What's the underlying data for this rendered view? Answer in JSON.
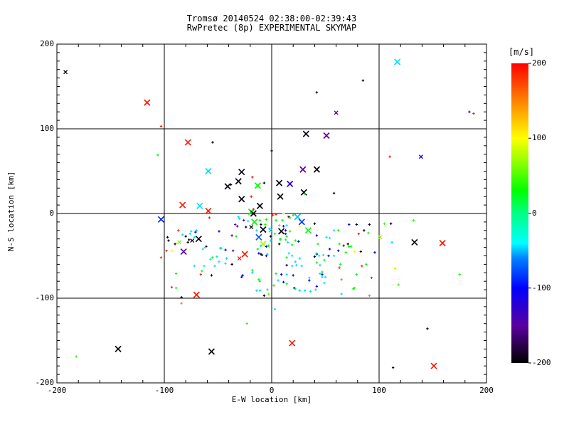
{
  "chart_data": {
    "type": "scatter",
    "title": "Tromsø 20140524 02:38:00-02:39:43",
    "subtitle": "RwPretec (8p) EXPERIMENTAL SKYMAP",
    "xlabel": "E-W location [km]",
    "ylabel": "N-S location [km]",
    "xlim": [
      -200,
      200
    ],
    "ylim": [
      -200,
      200
    ],
    "xticks": [
      -200,
      -100,
      0,
      100,
      200
    ],
    "yticks": [
      -200,
      -100,
      0,
      100,
      200
    ],
    "x_minor_step": 20,
    "y_minor_step": 10,
    "grid": true,
    "grid_lines_x": [
      -100,
      0,
      100
    ],
    "grid_lines_y": [
      -100,
      0,
      100
    ],
    "axis_color": "#000000",
    "background": "#ffffff",
    "colorbar": {
      "label": "[m/s]",
      "ticks": [
        200,
        100,
        0,
        -100,
        -200
      ],
      "range": [
        -200,
        200
      ],
      "stops": [
        [
          -200,
          "#000000"
        ],
        [
          -150,
          "#5a00a0"
        ],
        [
          -100,
          "#0000ff"
        ],
        [
          -60,
          "#0082ff"
        ],
        [
          -40,
          "#00ffff"
        ],
        [
          0,
          "#00ff82"
        ],
        [
          30,
          "#00ff00"
        ],
        [
          70,
          "#96ff00"
        ],
        [
          100,
          "#ffff00"
        ],
        [
          150,
          "#ff8200"
        ],
        [
          200,
          "#ff0000"
        ]
      ]
    },
    "marker_legend": {
      "2": "large-x",
      "1": "small-x",
      "0": "dot"
    },
    "points": [
      [
        -192,
        167,
        -195,
        1
      ],
      [
        -116,
        131,
        190,
        2
      ],
      [
        -103,
        103,
        190,
        0
      ],
      [
        -78,
        84,
        190,
        2
      ],
      [
        -55,
        84,
        -195,
        0
      ],
      [
        -106,
        69,
        30,
        0
      ],
      [
        -59,
        50,
        -45,
        2
      ],
      [
        -28,
        49,
        -195,
        2
      ],
      [
        -31,
        38,
        -195,
        2
      ],
      [
        -41,
        32,
        -195,
        2
      ],
      [
        -38,
        34,
        -195,
        0
      ],
      [
        -13,
        33,
        30,
        2
      ],
      [
        -7,
        36,
        -195,
        0
      ],
      [
        -18,
        43,
        190,
        0
      ],
      [
        -28,
        17,
        -195,
        2
      ],
      [
        -19,
        20,
        190,
        0
      ],
      [
        -83,
        10,
        190,
        2
      ],
      [
        -67,
        9,
        -45,
        2
      ],
      [
        -59,
        3,
        190,
        2
      ],
      [
        -11,
        9,
        -195,
        2
      ],
      [
        -19,
        2,
        30,
        2
      ],
      [
        -17,
        5,
        190,
        0
      ],
      [
        117,
        179,
        -45,
        2
      ],
      [
        85,
        157,
        -195,
        0
      ],
      [
        42,
        143,
        -195,
        0
      ],
      [
        60,
        119,
        -150,
        1
      ],
      [
        184,
        120,
        -130,
        0
      ],
      [
        188,
        118,
        190,
        0
      ],
      [
        32,
        94,
        -195,
        2
      ],
      [
        51,
        92,
        -150,
        2
      ],
      [
        110,
        67,
        190,
        0
      ],
      [
        139,
        67,
        -100,
        1
      ],
      [
        29,
        52,
        -150,
        2
      ],
      [
        42,
        52,
        -195,
        2
      ],
      [
        7,
        36,
        -195,
        2
      ],
      [
        17,
        35,
        -130,
        2
      ],
      [
        30,
        25,
        -195,
        2
      ],
      [
        31,
        23,
        30,
        0
      ],
      [
        58,
        24,
        -195,
        0
      ],
      [
        8,
        20,
        -195,
        2
      ],
      [
        0,
        74,
        -195,
        0
      ],
      [
        -103,
        -7,
        -90,
        2
      ],
      [
        -143,
        -160,
        -195,
        2
      ],
      [
        -182,
        -169,
        40,
        0
      ],
      [
        -56,
        -163,
        -195,
        2
      ],
      [
        -84,
        -106,
        150,
        0
      ],
      [
        -23,
        -130,
        40,
        0
      ],
      [
        19,
        -153,
        190,
        2
      ],
      [
        132,
        -8,
        40,
        0
      ],
      [
        105,
        -12,
        40,
        0
      ],
      [
        111,
        -12,
        -195,
        0
      ],
      [
        101,
        -28,
        70,
        1
      ],
      [
        112,
        -34,
        -45,
        0
      ],
      [
        133,
        -34,
        -195,
        2
      ],
      [
        159,
        -35,
        190,
        2
      ],
      [
        115,
        -65,
        80,
        0
      ],
      [
        175,
        -72,
        40,
        0
      ],
      [
        118,
        -84,
        40,
        0
      ],
      [
        3,
        -113,
        -45,
        0
      ],
      [
        145,
        -136,
        -195,
        0
      ],
      [
        113,
        -182,
        -195,
        0
      ],
      [
        151,
        -180,
        190,
        2
      ],
      [
        -70,
        -96,
        190,
        2
      ],
      [
        -58,
        -5,
        190,
        0
      ],
      [
        -34,
        -13,
        -150,
        0
      ],
      [
        -31,
        -4,
        -45,
        0
      ],
      [
        -16,
        -10,
        30,
        2
      ],
      [
        -10,
        -13,
        -195,
        0
      ],
      [
        -22,
        -9,
        -45,
        0
      ],
      [
        -6,
        -13,
        30,
        0
      ],
      [
        -14,
        -20,
        -45,
        0
      ],
      [
        -8,
        -19,
        -195,
        2
      ],
      [
        -2,
        -18,
        -45,
        0
      ],
      [
        -97,
        -28,
        -195,
        0
      ],
      [
        -96,
        -32,
        -195,
        0
      ],
      [
        -83,
        -25,
        -45,
        0
      ],
      [
        -80,
        -27,
        -195,
        0
      ],
      [
        -75,
        -21,
        -45,
        0
      ],
      [
        -70,
        -20,
        -45,
        0
      ],
      [
        -71,
        -22,
        -100,
        0
      ],
      [
        -68,
        -30,
        -195,
        2
      ],
      [
        -72,
        -28,
        -45,
        0
      ],
      [
        -78,
        -34,
        -195,
        0
      ],
      [
        -86,
        -34,
        55,
        1
      ],
      [
        -88,
        -35,
        100,
        0
      ],
      [
        -90,
        -36,
        -195,
        0
      ],
      [
        -82,
        -45,
        -150,
        2
      ],
      [
        -93,
        -44,
        100,
        0
      ],
      [
        -98,
        -44,
        185,
        0
      ],
      [
        -103,
        -52,
        185,
        0
      ],
      [
        -64,
        -42,
        -45,
        0
      ],
      [
        -12,
        -28,
        -75,
        2
      ],
      [
        -8,
        -36,
        75,
        2
      ],
      [
        -13,
        -42,
        30,
        0
      ],
      [
        -10,
        -48,
        -195,
        0
      ],
      [
        -5,
        -50,
        -100,
        0
      ],
      [
        -37,
        -60,
        -195,
        0
      ],
      [
        -43,
        -59,
        -45,
        0
      ],
      [
        -49,
        -57,
        -45,
        0
      ],
      [
        -48,
        -41,
        30,
        0
      ],
      [
        -55,
        -52,
        30,
        0
      ],
      [
        -51,
        -51,
        -45,
        0
      ],
      [
        -63,
        -62,
        -45,
        0
      ],
      [
        -27,
        -73,
        -100,
        0
      ],
      [
        -65,
        -68,
        30,
        0
      ],
      [
        -56,
        -73,
        -195,
        0
      ],
      [
        -66,
        -72,
        185,
        0
      ],
      [
        -89,
        -71,
        30,
        0
      ],
      [
        -93,
        -87,
        185,
        0
      ],
      [
        -89,
        -88,
        30,
        0
      ],
      [
        -84,
        -99,
        -195,
        0
      ],
      [
        -14,
        -91,
        -45,
        0
      ],
      [
        -4,
        -90,
        -45,
        0
      ],
      [
        -7,
        -97,
        -195,
        0
      ],
      [
        -11,
        -80,
        30,
        0
      ],
      [
        -18,
        -70,
        -45,
        0
      ],
      [
        -87,
        -20,
        185,
        0
      ],
      [
        -76,
        -24,
        -45,
        0
      ],
      [
        -49,
        -21,
        -100,
        0
      ],
      [
        -37,
        -26,
        -150,
        0
      ],
      [
        -77,
        -31,
        -195,
        0
      ],
      [
        -74,
        -32,
        -195,
        1
      ],
      [
        -61,
        -39,
        -195,
        0
      ],
      [
        -62,
        -40,
        -45,
        0
      ],
      [
        -47,
        -41,
        -45,
        0
      ],
      [
        -43,
        -43,
        -100,
        0
      ],
      [
        -36,
        -44,
        -150,
        0
      ],
      [
        -30,
        -53,
        190,
        1
      ],
      [
        -25,
        -48,
        190,
        2
      ],
      [
        -57,
        -54,
        -45,
        0
      ],
      [
        -42,
        -53,
        -45,
        0
      ],
      [
        -72,
        -62,
        -45,
        0
      ],
      [
        -53,
        -62,
        -45,
        0
      ],
      [
        -28,
        -75,
        -100,
        0
      ],
      [
        -18,
        -67,
        30,
        0
      ],
      [
        -12,
        -78,
        30,
        0
      ],
      [
        -11,
        -91,
        -45,
        0
      ],
      [
        -3,
        -95,
        55,
        0
      ],
      [
        -17,
        0,
        -195,
        2
      ],
      [
        -26,
        -8,
        -150,
        0
      ],
      [
        -30,
        -6,
        -45,
        0
      ],
      [
        -11,
        -8,
        30,
        0
      ],
      [
        -5,
        -7,
        30,
        0
      ],
      [
        4,
        -1,
        190,
        0
      ],
      [
        11,
        0,
        100,
        0
      ],
      [
        15,
        -3,
        100,
        0
      ],
      [
        4,
        -8,
        30,
        0
      ],
      [
        24,
        -4,
        -50,
        2
      ],
      [
        28,
        -10,
        -80,
        2
      ],
      [
        16,
        -4,
        -195,
        0
      ],
      [
        17,
        -5,
        30,
        0
      ],
      [
        10,
        -8,
        30,
        0
      ],
      [
        20,
        -2,
        30,
        0
      ],
      [
        1,
        -2,
        185,
        0
      ],
      [
        -32,
        -15,
        -150,
        0
      ],
      [
        -24,
        -16,
        -195,
        0
      ],
      [
        -19,
        -16,
        -195,
        1
      ],
      [
        -1,
        -20,
        -50,
        1
      ],
      [
        9,
        -21,
        -195,
        2
      ],
      [
        13,
        -20,
        -100,
        0
      ],
      [
        3,
        -24,
        30,
        0
      ],
      [
        14,
        -27,
        30,
        0
      ],
      [
        8,
        -30,
        30,
        0
      ],
      [
        -1,
        -27,
        -195,
        0
      ],
      [
        34,
        -20,
        30,
        2
      ],
      [
        26,
        -15,
        100,
        0
      ],
      [
        40,
        -12,
        -195,
        0
      ],
      [
        7,
        -14,
        140,
        0
      ],
      [
        11,
        -15,
        -100,
        0
      ],
      [
        14,
        -14,
        -45,
        0
      ],
      [
        13,
        -24,
        -150,
        0
      ],
      [
        17,
        -21,
        30,
        0
      ],
      [
        42,
        -26,
        -100,
        0
      ],
      [
        8,
        -31,
        30,
        0
      ],
      [
        13,
        -31,
        30,
        0
      ],
      [
        -1,
        -32,
        -45,
        0
      ],
      [
        7,
        -36,
        -195,
        0
      ],
      [
        15,
        -34,
        -45,
        0
      ],
      [
        22,
        -32,
        30,
        0
      ],
      [
        25,
        -33,
        -100,
        0
      ],
      [
        19,
        -37,
        30,
        0
      ],
      [
        -10,
        -38,
        -45,
        0
      ],
      [
        -5,
        -39,
        -100,
        0
      ],
      [
        -3,
        -38,
        30,
        0
      ],
      [
        -33,
        -27,
        30,
        0
      ],
      [
        -12,
        -47,
        -100,
        0
      ],
      [
        -9,
        -49,
        -195,
        0
      ],
      [
        -4,
        -48,
        -45,
        0
      ],
      [
        14,
        -52,
        30,
        0
      ],
      [
        19,
        -50,
        -45,
        0
      ],
      [
        22,
        -57,
        -45,
        0
      ],
      [
        26,
        -53,
        -45,
        0
      ],
      [
        42,
        -48,
        -195,
        0
      ],
      [
        16,
        -47,
        -45,
        0
      ],
      [
        23,
        -61,
        -45,
        0
      ],
      [
        20,
        -73,
        -100,
        0
      ],
      [
        14,
        -61,
        -195,
        0
      ],
      [
        19,
        -62,
        -45,
        0
      ],
      [
        28,
        -62,
        -45,
        0
      ],
      [
        4,
        -71,
        30,
        0
      ],
      [
        9,
        -72,
        -100,
        0
      ],
      [
        14,
        -72,
        -45,
        0
      ],
      [
        6,
        -79,
        -45,
        0
      ],
      [
        11,
        -81,
        -100,
        0
      ],
      [
        2,
        -85,
        30,
        0
      ],
      [
        21,
        -88,
        -100,
        0
      ],
      [
        35,
        -79,
        -100,
        0
      ],
      [
        42,
        -86,
        -100,
        0
      ],
      [
        26,
        -91,
        -45,
        0
      ],
      [
        31,
        -91,
        -45,
        0
      ],
      [
        22,
        -89,
        30,
        0
      ],
      [
        36,
        -92,
        -45,
        0
      ],
      [
        41,
        -90,
        -45,
        0
      ],
      [
        14,
        -83,
        30,
        0
      ],
      [
        72,
        -13,
        -100,
        0
      ],
      [
        79,
        -13,
        -195,
        0
      ],
      [
        91,
        -13,
        -195,
        0
      ],
      [
        58,
        -20,
        -45,
        0
      ],
      [
        62,
        -20,
        30,
        0
      ],
      [
        86,
        -20,
        -195,
        0
      ],
      [
        81,
        -24,
        185,
        0
      ],
      [
        90,
        -23,
        30,
        0
      ],
      [
        51,
        -28,
        -45,
        0
      ],
      [
        54,
        -29,
        -45,
        0
      ],
      [
        63,
        -36,
        30,
        0
      ],
      [
        71,
        -36,
        -195,
        0
      ],
      [
        43,
        -36,
        30,
        0
      ],
      [
        67,
        -38,
        -150,
        0
      ],
      [
        54,
        -42,
        -100,
        0
      ],
      [
        72,
        -39,
        30,
        0
      ],
      [
        74,
        -39,
        30,
        0
      ],
      [
        62,
        -44,
        -100,
        0
      ],
      [
        69,
        -46,
        30,
        0
      ],
      [
        77,
        -45,
        100,
        0
      ],
      [
        83,
        -45,
        -195,
        0
      ],
      [
        42,
        -47,
        -45,
        0
      ],
      [
        48,
        -49,
        -45,
        0
      ],
      [
        58,
        -50,
        -45,
        0
      ],
      [
        96,
        -46,
        -100,
        0
      ],
      [
        49,
        -55,
        30,
        0
      ],
      [
        42,
        -58,
        30,
        0
      ],
      [
        45,
        -61,
        -45,
        0
      ],
      [
        84,
        -62,
        185,
        0
      ],
      [
        88,
        -60,
        30,
        0
      ],
      [
        93,
        -76,
        185,
        0
      ],
      [
        50,
        -75,
        -45,
        0
      ],
      [
        47,
        -72,
        -100,
        0
      ],
      [
        79,
        -72,
        30,
        0
      ],
      [
        49,
        -82,
        -45,
        0
      ],
      [
        65,
        -78,
        30,
        0
      ],
      [
        77,
        -88,
        30,
        0
      ],
      [
        91,
        -97,
        30,
        0
      ],
      [
        65,
        -95,
        -45,
        0
      ],
      [
        44,
        -50,
        -45,
        0
      ],
      [
        53,
        -50,
        -100,
        0
      ],
      [
        64,
        -60,
        30,
        0
      ],
      [
        63,
        -64,
        185,
        0
      ],
      [
        47,
        -75,
        -45,
        0
      ],
      [
        47,
        -69,
        30,
        0
      ],
      [
        35,
        -76,
        -45,
        0
      ],
      [
        40,
        -51,
        -195,
        0
      ],
      [
        76,
        -89,
        30,
        0
      ],
      [
        45,
        -71,
        -45,
        0
      ]
    ]
  }
}
